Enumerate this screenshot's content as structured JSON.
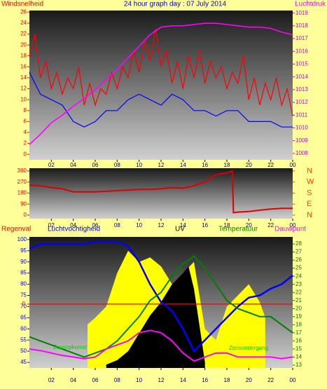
{
  "chart_data": [
    {
      "type": "line",
      "title": "24 hour graph day : 07 July 2014",
      "title_color": "#0000cc",
      "ylabel": "Windsnelheid",
      "ylabel_color": "#ff0000",
      "y2label": "Luchtdruk",
      "y2label_color": "#ff00ff",
      "xlim": [
        0,
        24
      ],
      "ylim": [
        -1,
        26.3
      ],
      "y2lim": [
        1007.5,
        1019.2
      ],
      "xticks": [
        {
          "value": 2,
          "label": "02"
        },
        {
          "value": 4,
          "label": "04"
        },
        {
          "value": 6,
          "label": "06"
        },
        {
          "value": 8,
          "label": "08"
        },
        10,
        12,
        14,
        16,
        18,
        20,
        22,
        {
          "value": 24,
          "label": "00"
        }
      ],
      "yticks": [
        0,
        2,
        4,
        6,
        8,
        10,
        12,
        14,
        16,
        18,
        20,
        22,
        24,
        26
      ],
      "ytick_color": "#ff0000",
      "y2ticks": [
        1008,
        1009,
        1010,
        1011,
        1012,
        1013,
        1014,
        1015,
        1016,
        1017,
        1018,
        1019
      ],
      "y2tick_color": "#cc00cc",
      "x": [
        0,
        1,
        2,
        3,
        4,
        5,
        6,
        7,
        8,
        9,
        10,
        11,
        12,
        13,
        14,
        15,
        16,
        17,
        18,
        19,
        20,
        21,
        22,
        23,
        24
      ],
      "series": [
        {
          "color": "#ff0000",
          "width": 1.2,
          "x": [
            0,
            0.5,
            1,
            1.5,
            2,
            2.5,
            3,
            3.5,
            4,
            4.5,
            5,
            5.5,
            6,
            6.5,
            7,
            7.5,
            8,
            8.5,
            9,
            9.5,
            10,
            10.5,
            11,
            11.5,
            12,
            12.5,
            13,
            13.5,
            14,
            14.5,
            15,
            15.5,
            16,
            16.5,
            17,
            17.5,
            18,
            18.5,
            19,
            19.5,
            20,
            20.5,
            21,
            21.5,
            22,
            22.5,
            23,
            23.5,
            24
          ],
          "values": [
            18,
            22,
            14,
            17,
            12,
            15,
            11,
            14,
            12,
            16,
            9,
            13,
            9,
            12,
            11,
            15,
            12,
            16,
            14,
            19,
            15,
            21,
            17,
            23,
            16,
            19,
            13,
            17,
            12,
            18,
            14,
            19,
            13,
            17,
            14,
            16,
            12,
            15,
            13,
            18,
            10,
            14,
            9,
            13,
            10,
            14,
            9,
            12,
            7
          ]
        },
        {
          "color": "#0000ff",
          "width": 1.2,
          "values": [
            15,
            11,
            10,
            9,
            6,
            5,
            6,
            8,
            8,
            10,
            11,
            10,
            9,
            11,
            10,
            8,
            8,
            7,
            8,
            8,
            6,
            6,
            6,
            5,
            5
          ]
        },
        {
          "color": "#ff00ff",
          "width": 1.6,
          "axis": "y2",
          "values": [
            1008.7,
            1009.5,
            1010.4,
            1011,
            1011.7,
            1012.3,
            1013,
            1013.8,
            1014.6,
            1015.5,
            1016.4,
            1017.3,
            1017.9,
            1018,
            1018,
            1018.1,
            1018.2,
            1018.2,
            1018.1,
            1018,
            1017.9,
            1017.9,
            1017.8,
            1017.5,
            1017.3
          ]
        }
      ]
    },
    {
      "type": "line",
      "xlim": [
        0,
        24
      ],
      "ylim": [
        -29,
        383
      ],
      "y2lim": [
        -29,
        383
      ],
      "xticks": [
        {
          "value": 2,
          "label": "02"
        },
        {
          "value": 4,
          "label": "04"
        },
        {
          "value": 6,
          "label": "06"
        },
        {
          "value": 8,
          "label": "08"
        },
        10,
        12,
        14,
        16,
        18,
        20,
        22,
        {
          "value": 24,
          "label": "00"
        }
      ],
      "yticks": [
        0,
        90,
        180,
        270,
        360
      ],
      "ytick_color": "#ff0000",
      "y2ticks": [
        {
          "value": 360,
          "label": "N"
        },
        {
          "value": 270,
          "label": "W"
        },
        {
          "value": 180,
          "label": "S"
        },
        {
          "value": 90,
          "label": "E"
        },
        {
          "value": 0,
          "label": "N"
        }
      ],
      "y2tick_color": "#ff4000",
      "series": [
        {
          "color": "#dd0000",
          "width": 2,
          "x": [
            0,
            1,
            2,
            3,
            4,
            5,
            6,
            7,
            8,
            9,
            10,
            11,
            12,
            13,
            14,
            15,
            16,
            17,
            18,
            18.5,
            18.6,
            19,
            20,
            21,
            22,
            23,
            24
          ],
          "values": [
            245,
            240,
            225,
            215,
            190,
            190,
            190,
            195,
            200,
            205,
            210,
            210,
            215,
            225,
            220,
            240,
            270,
            330,
            345,
            360,
            20,
            25,
            30,
            40,
            50,
            55,
            55
          ]
        }
      ]
    },
    {
      "type": "line",
      "header_labels": [
        {
          "text": "Regenval",
          "color": "#ff0000"
        },
        {
          "text": "Luchtvochtigheid",
          "color": "#0000cc"
        },
        {
          "text": "UV",
          "color": "#000000"
        },
        {
          "text": "Temperatuur",
          "color": "#008000"
        },
        {
          "text": "Dauwpunt",
          "color": "#ff00ff"
        }
      ],
      "annotations": [
        {
          "text": "Zonsopkomst",
          "color": "#00cc00"
        },
        {
          "text": "Zonsondergang",
          "color": "#00cc00"
        }
      ],
      "xlim": [
        0,
        24
      ],
      "ylim": [
        42.5,
        101.2
      ],
      "y2lim": [
        12.65,
        28.87
      ],
      "y3lim": [
        -0.487,
        0.513
      ],
      "xticks": [
        {
          "value": 2,
          "label": "02"
        },
        {
          "value": 4,
          "label": "04"
        },
        {
          "value": 6,
          "label": "06"
        },
        {
          "value": 8,
          "label": "08"
        },
        10,
        12,
        14,
        16,
        18,
        20,
        22,
        {
          "value": 24,
          "label": "00"
        }
      ],
      "yticks": [
        45,
        50,
        55,
        60,
        65,
        70,
        75,
        80,
        85,
        90,
        95,
        100
      ],
      "ytick_color": "#0000cc",
      "y2ticks": [
        13,
        14,
        15,
        16,
        17,
        18,
        19,
        20,
        21,
        22,
        23,
        24,
        25,
        26,
        27,
        28
      ],
      "y2tick_color": "#008000",
      "y3ticks": [
        0
      ],
      "y3tick_color": "#ff0000",
      "x": [
        0,
        1,
        2,
        3,
        4,
        5,
        6,
        7,
        8,
        9,
        10,
        11,
        12,
        13,
        14,
        15,
        16,
        17,
        18,
        19,
        20,
        21,
        22,
        23,
        24
      ],
      "series": [
        {
          "color": "#ffff00",
          "fill": true,
          "x": [
            5.3,
            6,
            7,
            8,
            9,
            10,
            11,
            12,
            13,
            14,
            15,
            16,
            17,
            18,
            19,
            20,
            21,
            21.5
          ],
          "values": [
            62,
            65,
            70,
            85,
            95,
            90,
            92,
            88,
            80,
            85,
            90,
            60,
            55,
            70,
            75,
            80,
            72,
            65
          ]
        },
        {
          "color": "#000000",
          "fill": true,
          "x": [
            7,
            8,
            9,
            10,
            11,
            12,
            13,
            14,
            14.5,
            15,
            16
          ],
          "values": [
            44,
            46,
            50,
            58,
            66,
            72,
            80,
            85,
            88,
            78,
            45
          ]
        },
        {
          "color": "#ff0000",
          "width": 1.2,
          "axis": "y3",
          "x": [
            0,
            24
          ],
          "values": [
            0,
            0
          ]
        },
        {
          "color": "#0000ff",
          "width": 2.5,
          "values": [
            96,
            98,
            98,
            98,
            98,
            98,
            99,
            99,
            99,
            97,
            90,
            80,
            72,
            68,
            60,
            50,
            55,
            60,
            65,
            70,
            74,
            75,
            78,
            80,
            84
          ]
        },
        {
          "color": "#008000",
          "width": 2,
          "axis": "y2",
          "values": [
            16.5,
            16,
            15.5,
            15,
            14.5,
            14,
            14.5,
            15,
            16,
            17.5,
            19,
            21,
            22,
            24,
            25.5,
            26.5,
            25,
            23,
            21,
            20,
            19.5,
            19,
            19,
            18,
            17
          ]
        },
        {
          "color": "#ff00ff",
          "width": 2,
          "axis": "y2",
          "values": [
            15,
            14.8,
            14.5,
            14.2,
            14,
            13.8,
            14,
            15,
            15.5,
            16,
            17,
            17.3,
            17,
            16,
            14.5,
            13.5,
            14,
            14.5,
            14.5,
            14,
            14,
            14,
            14,
            13.8,
            14
          ]
        }
      ]
    }
  ]
}
